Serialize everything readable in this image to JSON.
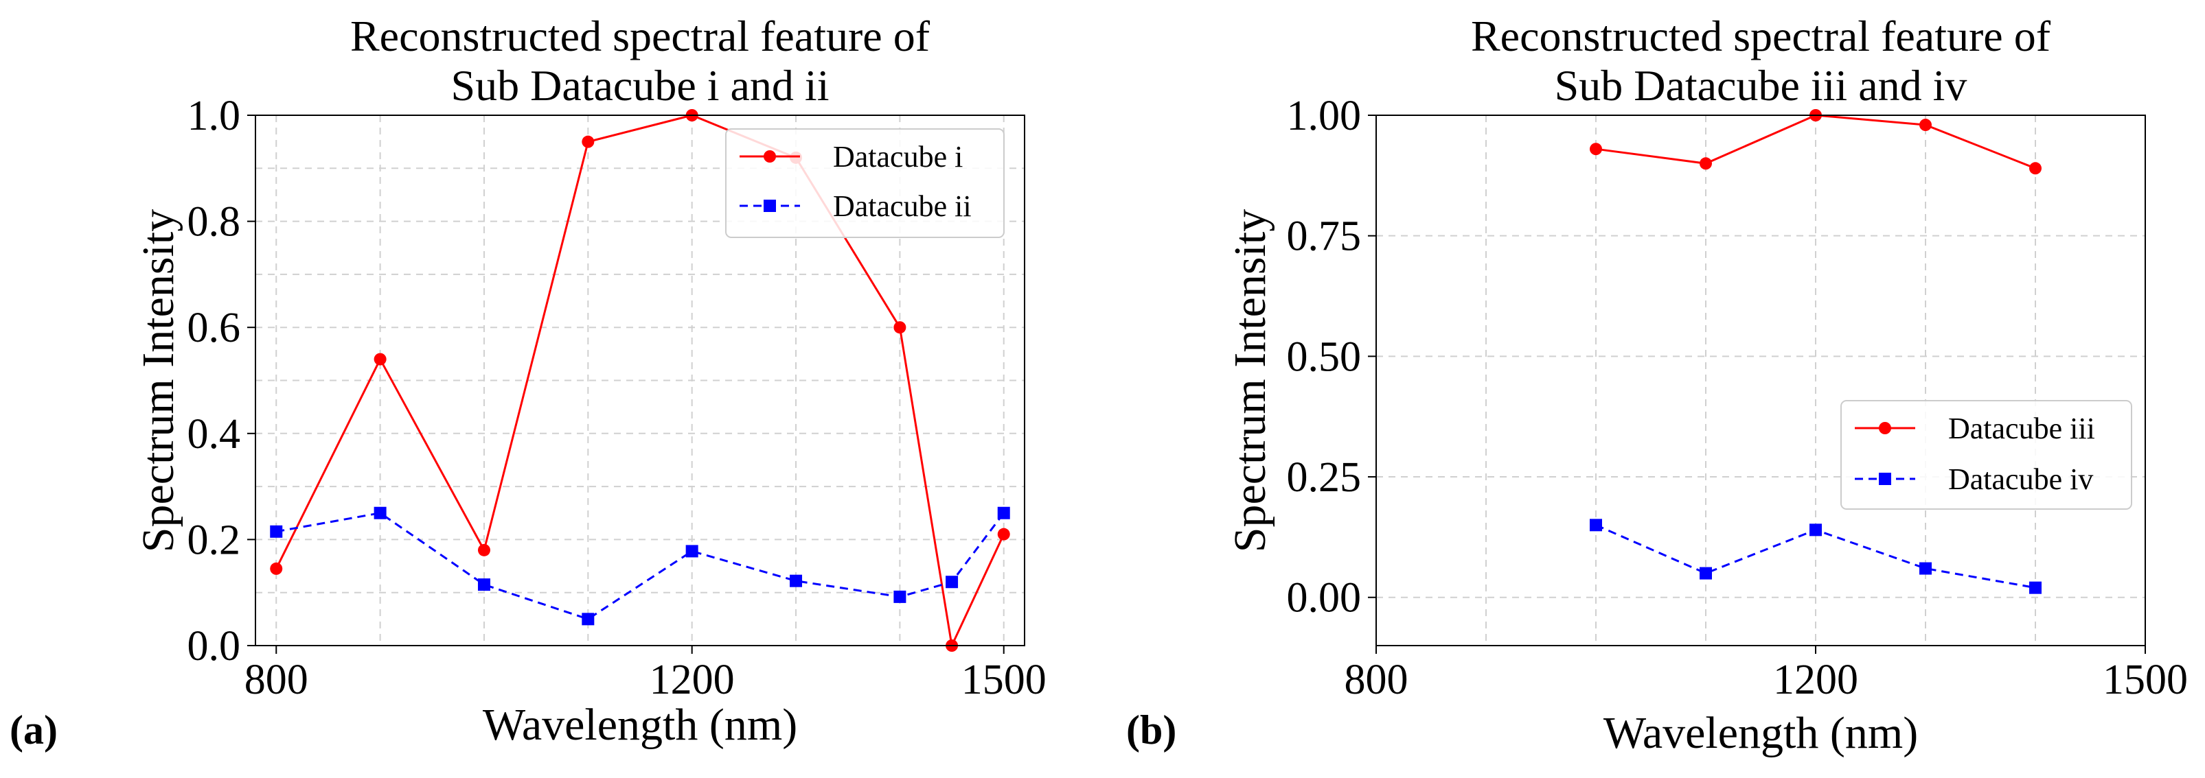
{
  "chart_data": [
    {
      "id": "a",
      "type": "line",
      "panel_label": "(a)",
      "title": [
        "Reconstructed spectral feature of",
        "Sub Datacube i and ii"
      ],
      "xlabel": "Wavelength (nm)",
      "ylabel": "Spectrum Intensity",
      "xlim": [
        780,
        1520
      ],
      "ylim": [
        0,
        1
      ],
      "xticks": [
        800,
        1200,
        1500
      ],
      "yticks": [
        0.0,
        0.2,
        0.4,
        0.6,
        0.8,
        1.0
      ],
      "ytick_labels": [
        "0.0",
        "0.2",
        "0.4",
        "0.6",
        "0.8",
        "1.0"
      ],
      "xgrid": [
        800,
        900,
        1000,
        1100,
        1200,
        1300,
        1400,
        1500
      ],
      "ygrid": [
        0.1,
        0.2,
        0.3,
        0.4,
        0.5,
        0.6,
        0.7,
        0.8,
        0.9,
        1.0
      ],
      "grid": true,
      "legend_position": "top-right",
      "series": [
        {
          "name": "Datacube i",
          "color": "#ff0000",
          "linestyle": "solid",
          "marker": "circle",
          "x": [
            800,
            900,
            1000,
            1100,
            1200,
            1300,
            1400,
            1450,
            1500
          ],
          "y": [
            0.145,
            0.54,
            0.18,
            0.95,
            1.0,
            0.92,
            0.6,
            0.0,
            0.21
          ]
        },
        {
          "name": "Datacube ii",
          "color": "#0000ff",
          "linestyle": "dashed",
          "marker": "square",
          "x": [
            800,
            900,
            1000,
            1100,
            1200,
            1300,
            1400,
            1450,
            1500
          ],
          "y": [
            0.215,
            0.25,
            0.115,
            0.05,
            0.178,
            0.122,
            0.092,
            0.12,
            0.25
          ]
        }
      ]
    },
    {
      "id": "b",
      "type": "line",
      "panel_label": "(b)",
      "title": [
        "Reconstructed spectral feature of",
        "Sub Datacube iii and iv"
      ],
      "xlabel": "Wavelength (nm)",
      "ylabel": "Spectrum Intensity",
      "xlim": [
        800,
        1500
      ],
      "ylim": [
        -0.1,
        1.0
      ],
      "xticks": [
        800,
        1200,
        1500
      ],
      "yticks": [
        0.0,
        0.25,
        0.5,
        0.75,
        1.0
      ],
      "ytick_labels": [
        "0.00",
        "0.25",
        "0.50",
        "0.75",
        "1.00"
      ],
      "xgrid": [
        900,
        1000,
        1100,
        1200,
        1300,
        1400
      ],
      "ygrid": [
        0.0,
        0.25,
        0.5,
        0.75
      ],
      "grid": true,
      "legend_position": "center-right",
      "series": [
        {
          "name": "Datacube iii",
          "color": "#ff0000",
          "linestyle": "solid",
          "marker": "circle",
          "x": [
            1000,
            1100,
            1200,
            1300,
            1400
          ],
          "y": [
            0.93,
            0.9,
            1.0,
            0.98,
            0.89
          ]
        },
        {
          "name": "Datacube iv",
          "color": "#0000ff",
          "linestyle": "dashed",
          "marker": "square",
          "x": [
            1000,
            1100,
            1200,
            1300,
            1400
          ],
          "y": [
            0.15,
            0.05,
            0.14,
            0.06,
            0.02
          ]
        }
      ]
    }
  ]
}
